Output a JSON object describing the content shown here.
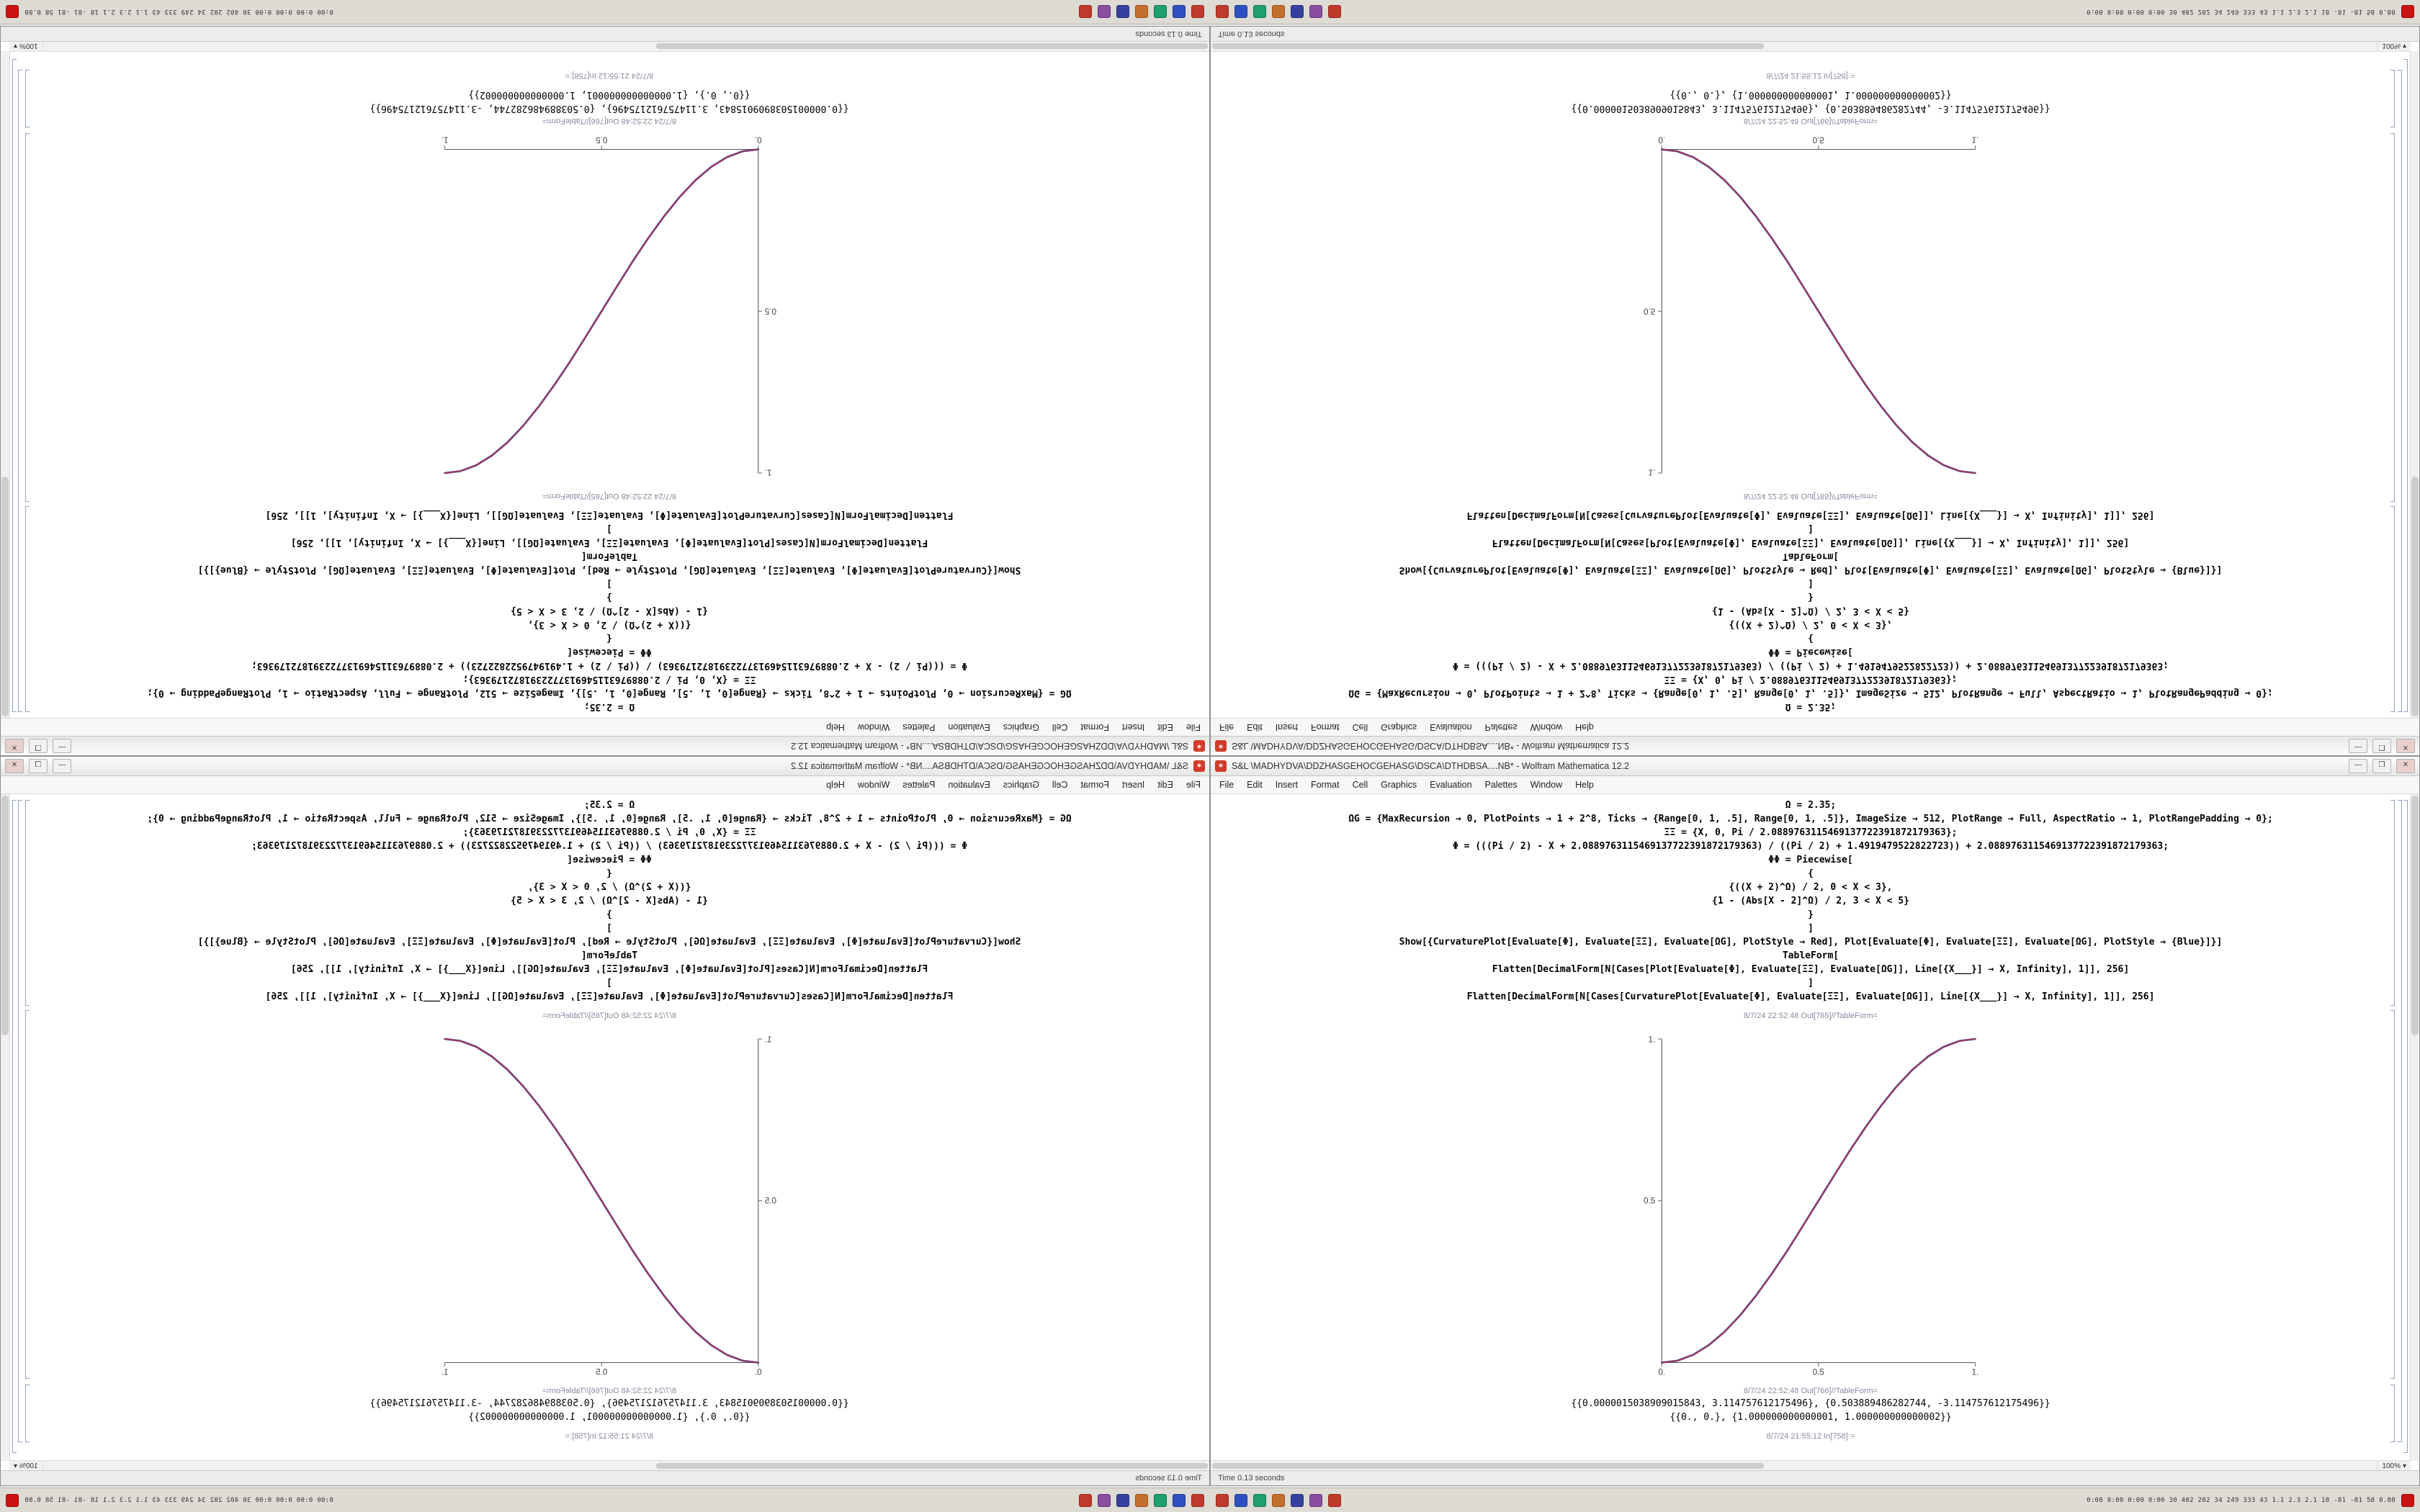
{
  "window": {
    "title": "S&L \\MADHYDVA\\DDZHASGEHOCGEHASG\\DSCA\\DTHDBSA....NB* - Wolfram Mathematica 12.2",
    "app_icon_glyph": "✶",
    "controls": {
      "minimize": "—",
      "maximize": "❐",
      "close": "✕"
    },
    "menus": [
      "File",
      "Edit",
      "Insert",
      "Format",
      "Cell",
      "Graphics",
      "Evaluation",
      "Palettes",
      "Window",
      "Help"
    ],
    "status_left": "Time 0.13 seconds",
    "zoom": "100%",
    "zoom_caret": "▾"
  },
  "cells": {
    "lines": [
      {
        "type": "input",
        "text": "Ω = 2.35;"
      },
      {
        "type": "input",
        "text": "ΩG = {MaxRecursion → 0, PlotPoints → 1 + 2^8, Ticks → {Range[0, 1, .5], Range[0, 1, .5]}, ImageSize → 512, PlotRange → Full, AspectRatio → 1, PlotRangePadding → 0};"
      },
      {
        "type": "input",
        "text": "ΞΞ = {X, 0, Pi / 2.0889763115469137722391872179363};"
      },
      {
        "type": "input",
        "text": "Φ = (((Pi / 2) - X + 2.0889763115469137722391872179363) / ((Pi / 2) + 1.4919479522822723)) + 2.0889763115469137722391872179363;"
      },
      {
        "type": "input",
        "text": "ΦΦ = Piecewise["
      },
      {
        "type": "input",
        "text": "{"
      },
      {
        "type": "input",
        "text": "{((X + 2)^Ω) / 2, 0 < X < 3},"
      },
      {
        "type": "input",
        "text": "{1 - (Abs[X - 2]^Ω) / 2, 3 < X < 5}"
      },
      {
        "type": "input",
        "text": "}"
      },
      {
        "type": "input",
        "text": "]"
      },
      {
        "type": "input",
        "text": "Show[{CurvaturePlot[Evaluate[Φ], Evaluate[ΞΞ], Evaluate[ΩG], PlotStyle → Red], Plot[Evaluate[Φ], Evaluate[ΞΞ], Evaluate[ΩG], PlotStyle → {Blue}]}]"
      },
      {
        "type": "input",
        "text": "TableForm["
      },
      {
        "type": "input",
        "text": "Flatten[DecimalForm[N[Cases[Plot[Evaluate[Φ], Evaluate[ΞΞ], Evaluate[ΩG]], Line[{X___}] → X, Infinity], 1]], 256]"
      },
      {
        "type": "input",
        "text": "]"
      },
      {
        "type": "input",
        "text": "Flatten[DecimalForm[N[Cases[CurvaturePlot[Evaluate[Φ], Evaluate[ΞΞ], Evaluate[ΩG]], Line[{X___}] → X, Infinity], 1]], 256]"
      },
      {
        "type": "label",
        "text": "8/7/24 22:52:48 Out[765]//TableForm="
      },
      {
        "type": "label",
        "text": "8/7/24 22:52:48 Out[766]//TableForm="
      },
      {
        "type": "output",
        "text": "{{0.0000015038909015843, 3.114757612175496}, {0.503889486282744, -3.114757612175496}}"
      },
      {
        "type": "output",
        "text": "{{0., 0.}, {1.000000000000001, 1.000000000000002}}"
      },
      {
        "type": "label",
        "text": "8/7/24 21:55:12 In[758]:="
      }
    ]
  },
  "chart_data": {
    "type": "line",
    "title": "",
    "xlabel": "",
    "ylabel": "",
    "xlim": [
      0,
      1
    ],
    "ylim": [
      0,
      1
    ],
    "grid": false,
    "legend": "none",
    "xtick_labels": [
      "0.",
      "0.5",
      "1."
    ],
    "ytick_labels": [
      "0.5",
      "1."
    ],
    "x": [
      0,
      0.05,
      0.1,
      0.15,
      0.2,
      0.25,
      0.3,
      0.35,
      0.4,
      0.45,
      0.5,
      0.55,
      0.6,
      0.65,
      0.7,
      0.75,
      0.8,
      0.85,
      0.9,
      0.95,
      1
    ],
    "series": [
      {
        "name": "CurvaturePlot (PlotStyle Red)",
        "color": "#c03434",
        "values": [
          0,
          0.006,
          0.024,
          0.054,
          0.095,
          0.146,
          0.206,
          0.273,
          0.345,
          0.422,
          0.5,
          0.578,
          0.655,
          0.727,
          0.794,
          0.854,
          0.905,
          0.946,
          0.976,
          0.994,
          1
        ]
      },
      {
        "name": "Plot (PlotStyle Blue)",
        "color": "#3a4fc0",
        "values": [
          0,
          0.006,
          0.024,
          0.054,
          0.095,
          0.146,
          0.206,
          0.273,
          0.345,
          0.422,
          0.5,
          0.578,
          0.655,
          0.727,
          0.794,
          0.854,
          0.905,
          0.946,
          0.976,
          0.994,
          1
        ]
      }
    ]
  },
  "taskbar": {
    "icons": [
      {
        "name": "app-red",
        "color": "#c03a2b"
      },
      {
        "name": "app-blue",
        "color": "#2d4fc0"
      },
      {
        "name": "app-green",
        "color": "#1f9e6e"
      },
      {
        "name": "app-orange",
        "color": "#c4702c"
      },
      {
        "name": "app-navy",
        "color": "#35409e"
      },
      {
        "name": "app-purple",
        "color": "#8a4da0"
      },
      {
        "name": "app-red-2",
        "color": "#c03a2b"
      }
    ],
    "stats": "0:00 0:00 0:00 0:00   30   402 202 34 249 333 43   1.1 2.3 2.1   18 -81 -81   58 0.80",
    "alert_color": "#cc1111"
  }
}
